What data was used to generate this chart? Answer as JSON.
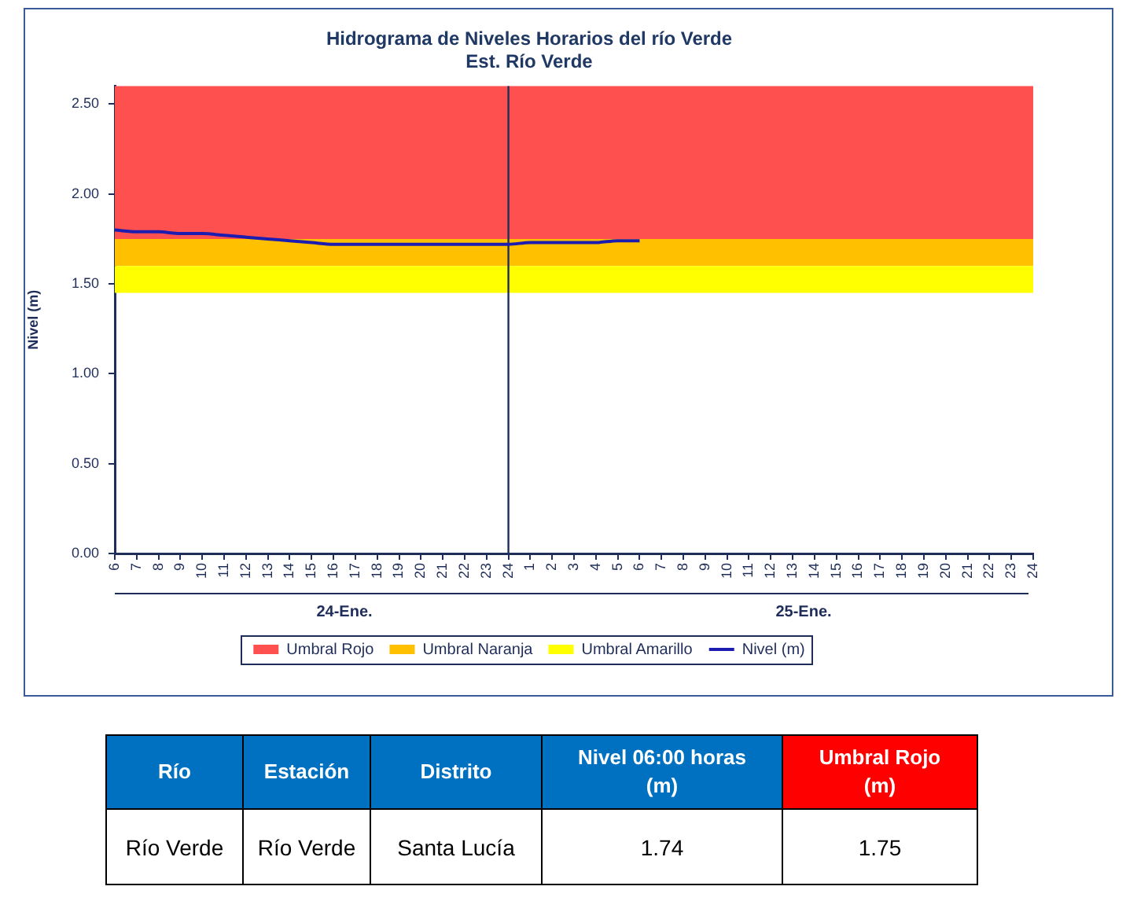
{
  "chart_data": [
    {
      "type": "line",
      "title": "Hidrograma de Niveles Horarios del río Verde",
      "subtitle": "Est. Río Verde",
      "ylabel": "Nivel (m)",
      "categories": [
        "6",
        "7",
        "8",
        "9",
        "10",
        "11",
        "12",
        "13",
        "14",
        "15",
        "16",
        "17",
        "18",
        "19",
        "20",
        "21",
        "22",
        "23",
        "24",
        "1",
        "2",
        "3",
        "4",
        "5",
        "6",
        "7",
        "8",
        "9",
        "10",
        "11",
        "12",
        "13",
        "14",
        "15",
        "16",
        "17",
        "18",
        "19",
        "20",
        "21",
        "22",
        "23",
        "24"
      ],
      "series": [
        {
          "name": "Nivel (m)",
          "color": "#1c1cb0",
          "values": [
            1.8,
            1.79,
            1.79,
            1.78,
            1.78,
            1.77,
            1.76,
            1.75,
            1.74,
            1.73,
            1.72,
            1.72,
            1.72,
            1.72,
            1.72,
            1.72,
            1.72,
            1.72,
            1.72,
            1.73,
            1.73,
            1.73,
            1.73,
            1.74,
            1.74,
            null,
            null,
            null,
            null,
            null,
            null,
            null,
            null,
            null,
            null,
            null,
            null,
            null,
            null,
            null,
            null,
            null,
            null
          ]
        }
      ],
      "ylim": [
        0,
        2.6
      ],
      "yticks": [
        {
          "value": 0,
          "label": "0.00"
        },
        {
          "value": 0.5,
          "label": "0.50"
        },
        {
          "value": 1,
          "label": "1.00"
        },
        {
          "value": 1.5,
          "label": "1.50"
        },
        {
          "value": 2,
          "label": "2.00"
        },
        {
          "value": 2.5,
          "label": "2.50"
        }
      ],
      "bands": [
        {
          "axis": "y",
          "from": 1.75,
          "to": 2.6,
          "label": "Umbral Rojo",
          "color": "#ff5050"
        },
        {
          "axis": "y",
          "from": 1.6,
          "to": 1.75,
          "label": "Umbral Naranja",
          "color": "#ffc000"
        },
        {
          "axis": "y",
          "from": 1.45,
          "to": 1.6,
          "label": "Umbral Amarillo",
          "color": "#ffff00"
        }
      ],
      "ref_lines": [
        {
          "axis": "x",
          "value": "24",
          "color": "#1f2d5a"
        }
      ],
      "annotations": [
        "24-Ene.",
        "25-Ene."
      ],
      "legend": "bottom",
      "grid": false,
      "marker": "none"
    },
    {
      "type": "other",
      "categories": [
        "Río",
        "Estación",
        "Distrito",
        "Nivel 06:00 horas (m)",
        "Umbral Rojo (m)"
      ],
      "colors": [
        "#0070c0",
        "#0070c0",
        "#0070c0",
        "#0070c0",
        "#ff0000"
      ],
      "annotations": [
        "Río Verde",
        "Río Verde",
        "Santa Lucía",
        "1.74",
        "1.75"
      ]
    }
  ]
}
